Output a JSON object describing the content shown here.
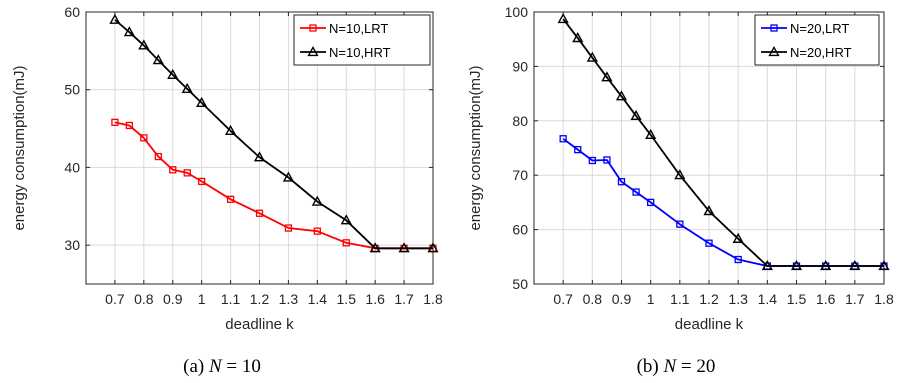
{
  "chart_data": [
    {
      "type": "line",
      "caption": {
        "prefix": "(a) ",
        "var": "N",
        "suffix": " = 10"
      },
      "xlabel": "deadline k",
      "ylabel": "energy consumption(mJ)",
      "xlim": [
        0.6,
        1.8
      ],
      "ylim": [
        25,
        60
      ],
      "xticks": [
        0.7,
        0.8,
        0.9,
        1,
        1.1,
        1.2,
        1.3,
        1.4,
        1.5,
        1.6,
        1.7,
        1.8
      ],
      "xtick_labels": [
        "0.7",
        "0.8",
        "0.9",
        "1",
        "1.1",
        "1.2",
        "1.3",
        "1.4",
        "1.5",
        "1.6",
        "1.7",
        "1.8"
      ],
      "yticks": [
        30,
        40,
        50,
        60
      ],
      "ytick_labels": [
        "30",
        "40",
        "50",
        "60"
      ],
      "grid": true,
      "legend_position": "top-right",
      "series": [
        {
          "name": "N=10,LRT",
          "color": "#ff0000",
          "marker": "square",
          "x": [
            0.7,
            0.75,
            0.8,
            0.85,
            0.9,
            0.95,
            1.0,
            1.1,
            1.2,
            1.3,
            1.4,
            1.5,
            1.6,
            1.7,
            1.8
          ],
          "y": [
            45.8,
            45.4,
            43.8,
            41.4,
            39.7,
            39.3,
            38.2,
            35.9,
            34.1,
            32.2,
            31.8,
            30.3,
            29.6,
            29.6,
            29.6
          ]
        },
        {
          "name": "N=10,HRT",
          "color": "#000000",
          "marker": "triangle",
          "x": [
            0.7,
            0.75,
            0.8,
            0.85,
            0.9,
            0.95,
            1.0,
            1.1,
            1.2,
            1.3,
            1.4,
            1.5,
            1.6,
            1.7,
            1.8
          ],
          "y": [
            59.0,
            57.4,
            55.7,
            53.8,
            51.9,
            50.1,
            48.3,
            44.7,
            41.3,
            38.7,
            35.6,
            33.2,
            29.6,
            29.6,
            29.6
          ]
        }
      ]
    },
    {
      "type": "line",
      "caption": {
        "prefix": "(b) ",
        "var": "N",
        "suffix": " = 20"
      },
      "xlabel": "deadline k",
      "ylabel": "energy consumption(mJ)",
      "xlim": [
        0.6,
        1.8
      ],
      "ylim": [
        50,
        100
      ],
      "xticks": [
        0.7,
        0.8,
        0.9,
        1,
        1.1,
        1.2,
        1.3,
        1.4,
        1.5,
        1.6,
        1.7,
        1.8
      ],
      "xtick_labels": [
        "0.7",
        "0.8",
        "0.9",
        "1",
        "1.1",
        "1.2",
        "1.3",
        "1.4",
        "1.5",
        "1.6",
        "1.7",
        "1.8"
      ],
      "yticks": [
        50,
        60,
        70,
        80,
        90,
        100
      ],
      "ytick_labels": [
        "50",
        "60",
        "70",
        "80",
        "90",
        "100"
      ],
      "grid": true,
      "legend_position": "top-right",
      "series": [
        {
          "name": "N=20,LRT",
          "color": "#0000ff",
          "marker": "square",
          "x": [
            0.7,
            0.75,
            0.8,
            0.85,
            0.9,
            0.95,
            1.0,
            1.1,
            1.2,
            1.3,
            1.4,
            1.5,
            1.6,
            1.7,
            1.8
          ],
          "y": [
            76.7,
            74.7,
            72.7,
            72.8,
            68.8,
            66.9,
            65.0,
            61.0,
            57.5,
            54.5,
            53.3,
            53.3,
            53.3,
            53.3,
            53.3
          ]
        },
        {
          "name": "N=20,HRT",
          "color": "#000000",
          "marker": "triangle",
          "x": [
            0.7,
            0.75,
            0.8,
            0.85,
            0.9,
            0.95,
            1.0,
            1.1,
            1.2,
            1.3,
            1.4,
            1.5,
            1.6,
            1.7,
            1.8
          ],
          "y": [
            98.7,
            95.2,
            91.6,
            88.0,
            84.5,
            80.9,
            77.4,
            70.0,
            63.4,
            58.3,
            53.3,
            53.3,
            53.3,
            53.3,
            53.3
          ]
        }
      ]
    }
  ]
}
